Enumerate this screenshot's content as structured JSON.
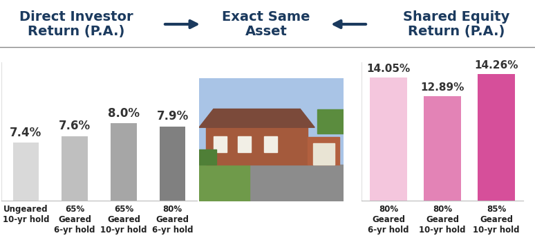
{
  "header_center": "Exact Same Asset",
  "chart_data": [
    {
      "type": "bar",
      "title": "Direct Investor Return (P.A.)",
      "categories": [
        "Ungeared 10-yr hold",
        "65% Geared 6-yr hold",
        "65% Geared 10-yr hold",
        "80% Geared 6-yr hold"
      ],
      "values": [
        7.4,
        7.6,
        8.0,
        7.9
      ],
      "value_labels": [
        "7.4%",
        "7.6%",
        "8.0%",
        "7.9%"
      ],
      "colors": [
        "#d9d9d9",
        "#bfbfbf",
        "#a6a6a6",
        "#808080"
      ],
      "ylim": [
        5.6,
        9.9
      ],
      "yticks": [],
      "tick_labels": "x",
      "data_labels": true
    },
    {
      "type": "bar",
      "title": "Shared Equity Return (P.A.)",
      "categories": [
        "80% Geared 6-yr hold",
        "80% Geared 10-yr hold",
        "85% Geared 10-yr hold"
      ],
      "values": [
        14.05,
        12.89,
        14.26
      ],
      "value_labels": [
        "14.05%",
        "12.89%",
        "14.26%"
      ],
      "colors": [
        "#f4c6dd",
        "#e383b6",
        "#d64f9a"
      ],
      "ylim": [
        6.4,
        15.0
      ],
      "yticks": [],
      "tick_labels": "x",
      "data_labels": true
    }
  ]
}
